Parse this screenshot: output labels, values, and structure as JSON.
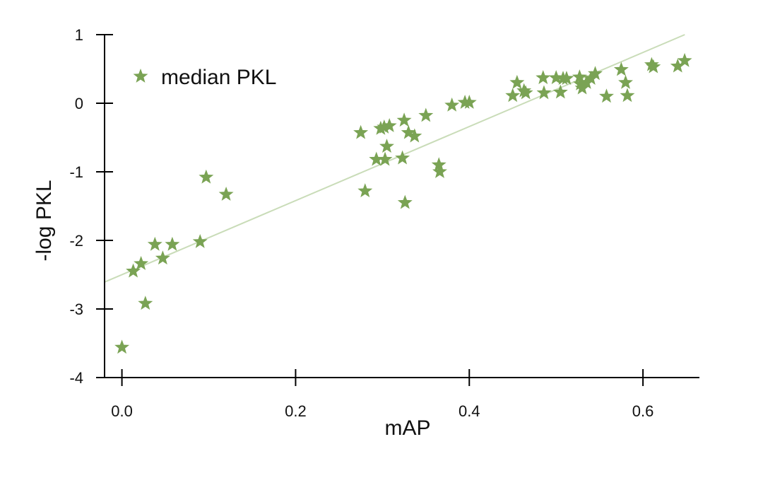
{
  "chart_data": {
    "type": "scatter",
    "xlabel": "mAP",
    "ylabel": "-log PKL",
    "xlim": [
      -0.02,
      0.665
    ],
    "ylim": [
      -4,
      1
    ],
    "xticks": [
      0.0,
      0.2,
      0.4,
      0.6
    ],
    "xtick_labels": [
      "0.0",
      "0.2",
      "0.4",
      "0.6"
    ],
    "yticks": [
      1,
      0,
      -1,
      -2,
      -3,
      -4
    ],
    "ytick_labels": [
      "1",
      "0",
      "-1",
      "-2",
      "-3",
      "-4"
    ],
    "grid": false,
    "legend_position": "top-left",
    "marker": "star",
    "colors": {
      "points": "#7aa354",
      "fit_line": "#c9dcb8",
      "axis": "#000000"
    },
    "series": [
      {
        "name": "median PKL",
        "points": [
          [
            0.0,
            -3.56
          ],
          [
            0.013,
            -2.45
          ],
          [
            0.022,
            -2.34
          ],
          [
            0.027,
            -2.92
          ],
          [
            0.038,
            -2.06
          ],
          [
            0.047,
            -2.26
          ],
          [
            0.058,
            -2.06
          ],
          [
            0.09,
            -2.02
          ],
          [
            0.097,
            -1.08
          ],
          [
            0.12,
            -1.33
          ],
          [
            0.275,
            -0.43
          ],
          [
            0.28,
            -1.28
          ],
          [
            0.293,
            -0.82
          ],
          [
            0.298,
            -0.37
          ],
          [
            0.302,
            -0.35
          ],
          [
            0.303,
            -0.82
          ],
          [
            0.305,
            -0.63
          ],
          [
            0.308,
            -0.33
          ],
          [
            0.323,
            -0.8
          ],
          [
            0.325,
            -0.25
          ],
          [
            0.326,
            -1.45
          ],
          [
            0.33,
            -0.43
          ],
          [
            0.337,
            -0.48
          ],
          [
            0.35,
            -0.18
          ],
          [
            0.38,
            -0.03
          ],
          [
            0.395,
            0.01
          ],
          [
            0.4,
            0.01
          ],
          [
            0.365,
            -0.9
          ],
          [
            0.366,
            -1.0
          ],
          [
            0.45,
            0.11
          ],
          [
            0.455,
            0.3
          ],
          [
            0.463,
            0.18
          ],
          [
            0.465,
            0.15
          ],
          [
            0.485,
            0.37
          ],
          [
            0.486,
            0.15
          ],
          [
            0.5,
            0.37
          ],
          [
            0.505,
            0.16
          ],
          [
            0.508,
            0.36
          ],
          [
            0.512,
            0.36
          ],
          [
            0.527,
            0.38
          ],
          [
            0.528,
            0.28
          ],
          [
            0.53,
            0.22
          ],
          [
            0.535,
            0.3
          ],
          [
            0.54,
            0.36
          ],
          [
            0.545,
            0.43
          ],
          [
            0.558,
            0.1
          ],
          [
            0.575,
            0.49
          ],
          [
            0.58,
            0.3
          ],
          [
            0.582,
            0.11
          ],
          [
            0.61,
            0.56
          ],
          [
            0.612,
            0.53
          ],
          [
            0.64,
            0.54
          ],
          [
            0.648,
            0.62
          ]
        ]
      }
    ],
    "fit_line": {
      "intercept": -2.5,
      "slope": 5.4
    }
  }
}
